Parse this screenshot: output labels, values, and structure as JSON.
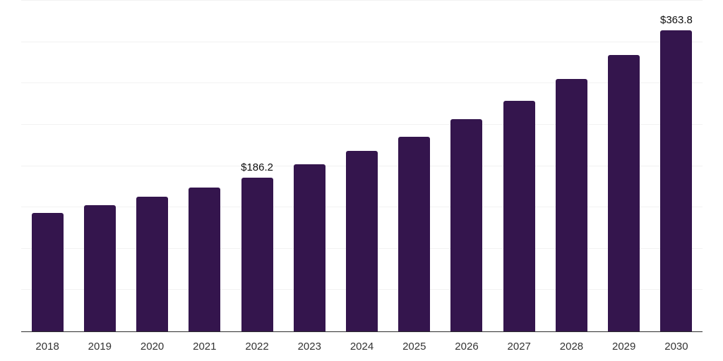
{
  "chart_data": {
    "type": "bar",
    "title": "",
    "xlabel": "",
    "ylabel": "",
    "categories": [
      "2018",
      "2019",
      "2020",
      "2021",
      "2022",
      "2023",
      "2024",
      "2025",
      "2026",
      "2027",
      "2028",
      "2029",
      "2030"
    ],
    "values": [
      143.6,
      152.8,
      163.3,
      173.9,
      186.2,
      202.0,
      218.0,
      235.5,
      256.5,
      279.0,
      305.0,
      334.0,
      363.8
    ],
    "data_labels": {
      "2022": "$186.2",
      "2030": "$363.8"
    },
    "ylim": [
      0,
      400
    ],
    "grid_step": 50,
    "grid": "horizontal",
    "legend": "none",
    "colors": {
      "bar": "#34154d",
      "gridline": "#f2f2f2",
      "axis": "#2e2e2e",
      "data_label": "#0f0f0f",
      "tick_label": "#333333",
      "background": "#ffffff"
    }
  }
}
